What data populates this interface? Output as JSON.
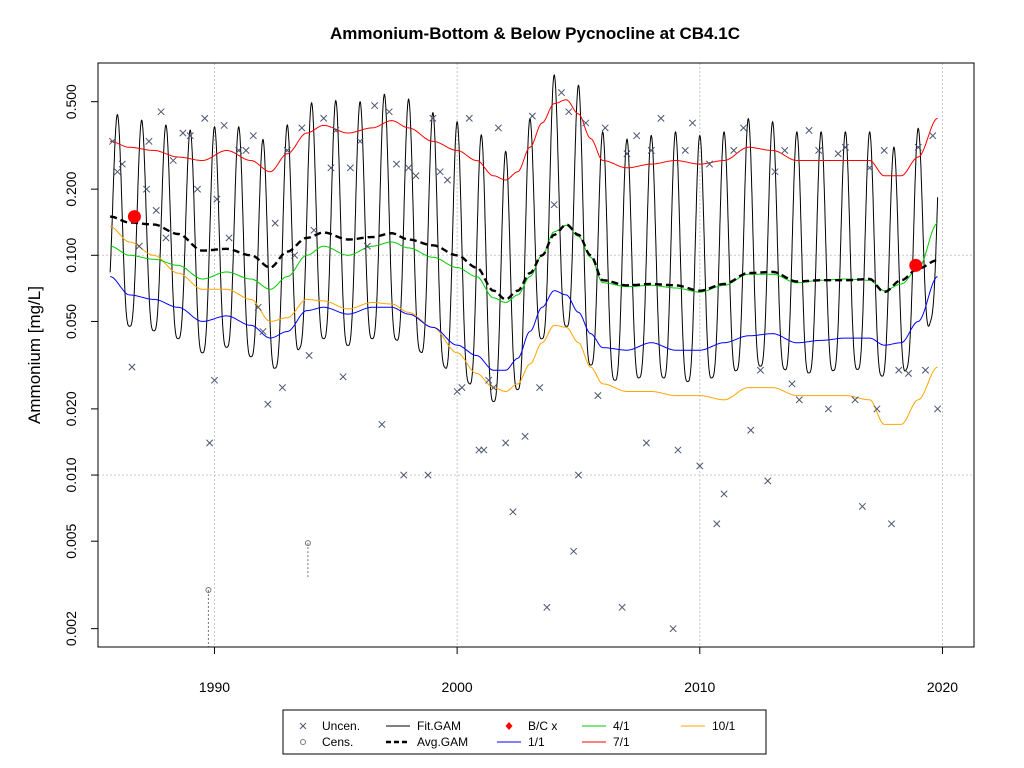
{
  "chart_data": {
    "type": "scatter",
    "title": "Ammonium-Bottom & Below Pycnocline at CB4.1C",
    "xlabel": "",
    "ylabel": "Ammonium [mg/L]",
    "y_scale": "log",
    "xlim": [
      1985.2,
      2021.3
    ],
    "ylim": [
      0.00165,
      0.75
    ],
    "x_ticks": [
      1990,
      2000,
      2010,
      2020
    ],
    "x_tick_labels": [
      "1990",
      "2000",
      "2010",
      "2020"
    ],
    "y_ticks": [
      0.002,
      0.005,
      0.01,
      0.02,
      0.05,
      0.1,
      0.2,
      0.5
    ],
    "y_tick_labels": [
      "0.002",
      "0.005",
      "0.010",
      "0.020",
      "0.050",
      "0.100",
      "0.200",
      "0.500"
    ],
    "grid": true,
    "legend_position": "bottom",
    "legend": [
      {
        "label": "Uncen.",
        "symbol": "x",
        "color": "#4a5570"
      },
      {
        "label": "Cens.",
        "symbol": "o",
        "color": "#777777"
      },
      {
        "label": "Fit.GAM",
        "symbol": "line",
        "color": "#000000"
      },
      {
        "label": "Avg.GAM",
        "symbol": "dashed",
        "color": "#000000"
      },
      {
        "label": "B/C x",
        "symbol": "diamond",
        "color": "#ff0000"
      },
      {
        "label": "1/1",
        "symbol": "line",
        "color": "#0000ff"
      },
      {
        "label": "4/1",
        "symbol": "line",
        "color": "#00cc00"
      },
      {
        "label": "7/1",
        "symbol": "line",
        "color": "#ff0000"
      },
      {
        "label": "10/1",
        "symbol": "line",
        "color": "#ffa500"
      }
    ],
    "colors": {
      "uncen": "#4a5570",
      "cens": "#777777",
      "fit": "#000000",
      "avg": "#000000",
      "bc": "#ff0000",
      "jan": "#0000ff",
      "apr": "#00cc00",
      "jul": "#ff0000",
      "oct": "#ffa500"
    },
    "series": [
      {
        "name": "Avg.GAM",
        "x": [
          1985.7,
          1986.5,
          1987.5,
          1988.5,
          1989.5,
          1990.5,
          1991.5,
          1992.3,
          1993,
          1993.8,
          1994.5,
          1995.5,
          1996.5,
          1997.3,
          1998,
          1999,
          2000,
          2000.8,
          2001.5,
          2002,
          2002.5,
          2003,
          2003.5,
          2004,
          2004.5,
          2005,
          2005.5,
          2006,
          2007,
          2008,
          2009,
          2010,
          2011,
          2012,
          2013,
          2014,
          2015,
          2016,
          2017,
          2017.6,
          2018.3,
          2019,
          2019.8
        ],
        "y": [
          0.15,
          0.141,
          0.138,
          0.125,
          0.105,
          0.107,
          0.1,
          0.088,
          0.104,
          0.12,
          0.127,
          0.118,
          0.121,
          0.126,
          0.118,
          0.111,
          0.1,
          0.088,
          0.069,
          0.063,
          0.069,
          0.083,
          0.1,
          0.124,
          0.138,
          0.124,
          0.1,
          0.077,
          0.073,
          0.074,
          0.073,
          0.069,
          0.074,
          0.083,
          0.084,
          0.076,
          0.077,
          0.077,
          0.078,
          0.068,
          0.077,
          0.087,
          0.095
        ]
      },
      {
        "name": "7/1",
        "x": [
          1985.7,
          1986.5,
          1987.5,
          1988.5,
          1989.5,
          1990.5,
          1991.5,
          1992.3,
          1993,
          1993.8,
          1994.5,
          1995.5,
          1996.5,
          1997.3,
          1998,
          1999,
          2000,
          2000.8,
          2001.5,
          2002,
          2002.5,
          2003,
          2003.5,
          2004,
          2004.5,
          2005,
          2005.5,
          2006,
          2007,
          2008,
          2009,
          2010,
          2011,
          2012,
          2013,
          2014,
          2015,
          2016,
          2017,
          2017.6,
          2018.3,
          2019,
          2019.8
        ],
        "y": [
          0.33,
          0.31,
          0.3,
          0.28,
          0.27,
          0.3,
          0.27,
          0.24,
          0.29,
          0.36,
          0.39,
          0.36,
          0.38,
          0.41,
          0.38,
          0.33,
          0.3,
          0.27,
          0.23,
          0.22,
          0.24,
          0.31,
          0.4,
          0.49,
          0.51,
          0.44,
          0.34,
          0.27,
          0.25,
          0.26,
          0.27,
          0.26,
          0.27,
          0.31,
          0.3,
          0.27,
          0.27,
          0.27,
          0.27,
          0.23,
          0.23,
          0.28,
          0.42
        ]
      },
      {
        "name": "4/1",
        "x": [
          1985.7,
          1986.5,
          1987.5,
          1988.5,
          1989.5,
          1990.5,
          1991.5,
          1992.3,
          1993,
          1993.8,
          1994.5,
          1995.5,
          1996.5,
          1997.3,
          1998,
          1999,
          2000,
          2000.8,
          2001.5,
          2002,
          2002.5,
          2003,
          2003.5,
          2004,
          2004.5,
          2005,
          2005.5,
          2006,
          2007,
          2008,
          2009,
          2010,
          2011,
          2012,
          2013,
          2014,
          2015,
          2016,
          2017,
          2017.6,
          2018.3,
          2019,
          2019.8
        ],
        "y": [
          0.11,
          0.1,
          0.096,
          0.09,
          0.078,
          0.084,
          0.078,
          0.07,
          0.08,
          0.1,
          0.11,
          0.1,
          0.11,
          0.115,
          0.108,
          0.098,
          0.088,
          0.08,
          0.064,
          0.061,
          0.066,
          0.08,
          0.1,
          0.128,
          0.137,
          0.122,
          0.098,
          0.075,
          0.072,
          0.073,
          0.071,
          0.068,
          0.073,
          0.082,
          0.082,
          0.075,
          0.077,
          0.078,
          0.077,
          0.069,
          0.074,
          0.087,
          0.14
        ]
      },
      {
        "name": "10/1",
        "x": [
          1985.7,
          1986.5,
          1987.5,
          1988.5,
          1989.5,
          1990.5,
          1991.5,
          1992.3,
          1993,
          1993.8,
          1994.5,
          1995.5,
          1996.5,
          1997.3,
          1998,
          1999,
          2000,
          2000.8,
          2001.5,
          2002,
          2002.5,
          2003,
          2003.5,
          2004,
          2004.5,
          2005,
          2005.5,
          2006,
          2007,
          2008,
          2009,
          2010,
          2011,
          2012,
          2013,
          2014,
          2015,
          2016,
          2017,
          2017.6,
          2018.3,
          2019,
          2019.8
        ],
        "y": [
          0.135,
          0.115,
          0.1,
          0.083,
          0.07,
          0.07,
          0.063,
          0.05,
          0.052,
          0.063,
          0.062,
          0.057,
          0.061,
          0.06,
          0.055,
          0.047,
          0.036,
          0.029,
          0.025,
          0.024,
          0.026,
          0.032,
          0.04,
          0.048,
          0.047,
          0.04,
          0.031,
          0.026,
          0.024,
          0.024,
          0.023,
          0.023,
          0.022,
          0.025,
          0.025,
          0.023,
          0.023,
          0.023,
          0.022,
          0.017,
          0.017,
          0.022,
          0.031
        ]
      },
      {
        "name": "1/1",
        "x": [
          1985.7,
          1986.5,
          1987.5,
          1988.5,
          1989.5,
          1990.5,
          1991.5,
          1992.3,
          1993,
          1993.8,
          1994.5,
          1995.5,
          1996.5,
          1997.3,
          1998,
          1999,
          2000,
          2000.8,
          2001.5,
          2002,
          2002.5,
          2003,
          2003.5,
          2004,
          2004.5,
          2005,
          2005.5,
          2006,
          2007,
          2008,
          2009,
          2010,
          2011,
          2012,
          2013,
          2014,
          2015,
          2016,
          2017,
          2017.6,
          2018.3,
          2019,
          2019.8
        ],
        "y": [
          0.08,
          0.066,
          0.063,
          0.058,
          0.05,
          0.053,
          0.048,
          0.042,
          0.045,
          0.056,
          0.058,
          0.054,
          0.058,
          0.058,
          0.054,
          0.047,
          0.039,
          0.035,
          0.03,
          0.03,
          0.034,
          0.045,
          0.058,
          0.069,
          0.066,
          0.055,
          0.044,
          0.038,
          0.037,
          0.04,
          0.037,
          0.037,
          0.04,
          0.043,
          0.044,
          0.04,
          0.041,
          0.042,
          0.042,
          0.039,
          0.04,
          0.05,
          0.08
        ]
      }
    ],
    "fit_gam": {
      "name": "Fit.GAM",
      "description_of_shape": "seasonal oscillation between 7/1 (peak) and 1/1 minus margin (trough), one cycle per year",
      "start_year": 1985.7,
      "end_year": 2019.8
    },
    "bc_points": [
      {
        "x": 1986.7,
        "y": 0.15
      },
      {
        "x": 2018.9,
        "y": 0.09
      }
    ],
    "uncensored_points": [
      [
        1985.8,
        0.33
      ],
      [
        1986.0,
        0.24
      ],
      [
        1986.2,
        0.26
      ],
      [
        1986.6,
        0.031
      ],
      [
        1986.9,
        0.11
      ],
      [
        1987.2,
        0.2
      ],
      [
        1987.3,
        0.33
      ],
      [
        1987.6,
        0.16
      ],
      [
        1987.8,
        0.45
      ],
      [
        1988.0,
        0.12
      ],
      [
        1988.3,
        0.27
      ],
      [
        1988.7,
        0.36
      ],
      [
        1989.0,
        0.35
      ],
      [
        1989.3,
        0.2
      ],
      [
        1989.6,
        0.42
      ],
      [
        1989.8,
        0.014
      ],
      [
        1990.0,
        0.027
      ],
      [
        1990.1,
        0.18
      ],
      [
        1990.4,
        0.39
      ],
      [
        1990.6,
        0.12
      ],
      [
        1991.0,
        0.3
      ],
      [
        1991.3,
        0.3
      ],
      [
        1991.6,
        0.35
      ],
      [
        1991.8,
        0.058
      ],
      [
        1992.0,
        0.045
      ],
      [
        1992.2,
        0.021
      ],
      [
        1992.5,
        0.14
      ],
      [
        1992.8,
        0.025
      ],
      [
        1993.0,
        0.3
      ],
      [
        1993.3,
        0.1
      ],
      [
        1993.6,
        0.38
      ],
      [
        1993.9,
        0.035
      ],
      [
        1994.1,
        0.13
      ],
      [
        1994.5,
        0.42
      ],
      [
        1994.8,
        0.25
      ],
      [
        1995.0,
        0.37
      ],
      [
        1995.3,
        0.028
      ],
      [
        1995.6,
        0.25
      ],
      [
        1996.0,
        0.33
      ],
      [
        1996.3,
        0.11
      ],
      [
        1996.6,
        0.48
      ],
      [
        1996.9,
        0.017
      ],
      [
        1997.2,
        0.45
      ],
      [
        1997.5,
        0.26
      ],
      [
        1997.8,
        0.01
      ],
      [
        1998.0,
        0.25
      ],
      [
        1998.3,
        0.23
      ],
      [
        1998.8,
        0.01
      ],
      [
        1999.0,
        0.42
      ],
      [
        1999.3,
        0.24
      ],
      [
        1999.6,
        0.22
      ],
      [
        2000.0,
        0.024
      ],
      [
        2000.2,
        0.025
      ],
      [
        2000.5,
        0.42
      ],
      [
        2000.9,
        0.013
      ],
      [
        2001.1,
        0.013
      ],
      [
        2001.3,
        0.027
      ],
      [
        2001.5,
        0.025
      ],
      [
        2001.7,
        0.38
      ],
      [
        2002.0,
        0.014
      ],
      [
        2002.3,
        0.0068
      ],
      [
        2002.8,
        0.015
      ],
      [
        2003.1,
        0.43
      ],
      [
        2003.4,
        0.025
      ],
      [
        2003.7,
        0.0025
      ],
      [
        2004.0,
        0.17
      ],
      [
        2004.3,
        0.55
      ],
      [
        2004.6,
        0.45
      ],
      [
        2004.8,
        0.0045
      ],
      [
        2005.0,
        0.01
      ],
      [
        2005.3,
        0.4
      ],
      [
        2005.8,
        0.023
      ],
      [
        2006.1,
        0.38
      ],
      [
        2006.8,
        0.0025
      ],
      [
        2007.0,
        0.29
      ],
      [
        2007.4,
        0.35
      ],
      [
        2007.8,
        0.014
      ],
      [
        2008.0,
        0.3
      ],
      [
        2008.4,
        0.42
      ],
      [
        2008.9,
        0.002
      ],
      [
        2009.1,
        0.013
      ],
      [
        2009.4,
        0.3
      ],
      [
        2009.7,
        0.4
      ],
      [
        2010.0,
        0.011
      ],
      [
        2010.4,
        0.26
      ],
      [
        2010.7,
        0.006
      ],
      [
        2011.0,
        0.0082
      ],
      [
        2011.4,
        0.3
      ],
      [
        2011.8,
        0.38
      ],
      [
        2012.1,
        0.016
      ],
      [
        2012.5,
        0.03
      ],
      [
        2012.8,
        0.0094
      ],
      [
        2013.1,
        0.24
      ],
      [
        2013.5,
        0.3
      ],
      [
        2013.8,
        0.026
      ],
      [
        2014.1,
        0.022
      ],
      [
        2014.5,
        0.37
      ],
      [
        2014.9,
        0.3
      ],
      [
        2015.3,
        0.02
      ],
      [
        2015.7,
        0.29
      ],
      [
        2016.0,
        0.31
      ],
      [
        2016.4,
        0.022
      ],
      [
        2016.7,
        0.0072
      ],
      [
        2017.0,
        0.25
      ],
      [
        2017.3,
        0.02
      ],
      [
        2017.6,
        0.3
      ],
      [
        2017.9,
        0.006
      ],
      [
        2018.2,
        0.03
      ],
      [
        2018.6,
        0.029
      ],
      [
        2019.0,
        0.31
      ],
      [
        2019.3,
        0.03
      ],
      [
        2019.6,
        0.35
      ],
      [
        2019.8,
        0.02
      ]
    ],
    "censored_points": [
      {
        "x": 1989.75,
        "y": 0.003,
        "lower": 0.00165
      },
      {
        "x": 1993.85,
        "y": 0.0049,
        "lower": 0.0034
      }
    ]
  }
}
